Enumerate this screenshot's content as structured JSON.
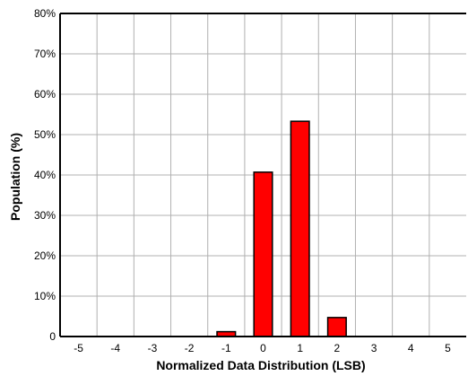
{
  "chart_data": {
    "type": "bar",
    "title": "",
    "xlabel": "Normalized Data Distribution (LSB)",
    "ylabel": "Population (%)",
    "categories": [
      "-5",
      "-4",
      "-3",
      "-2",
      "-1",
      "0",
      "1",
      "2",
      "3",
      "4",
      "5"
    ],
    "values": [
      0,
      0,
      0,
      0,
      1.2,
      40.7,
      53.3,
      4.7,
      0,
      0,
      0
    ],
    "ylim": [
      0,
      80
    ],
    "y_ticks": [
      "0",
      "10%",
      "20%",
      "30%",
      "40%",
      "50%",
      "60%",
      "70%",
      "80%"
    ],
    "grid": true,
    "legend": "none",
    "colors": {
      "bar_fill": "#ff0000",
      "bar_stroke": "#000000",
      "grid": "#b0b0b0",
      "axis": "#000000"
    }
  }
}
